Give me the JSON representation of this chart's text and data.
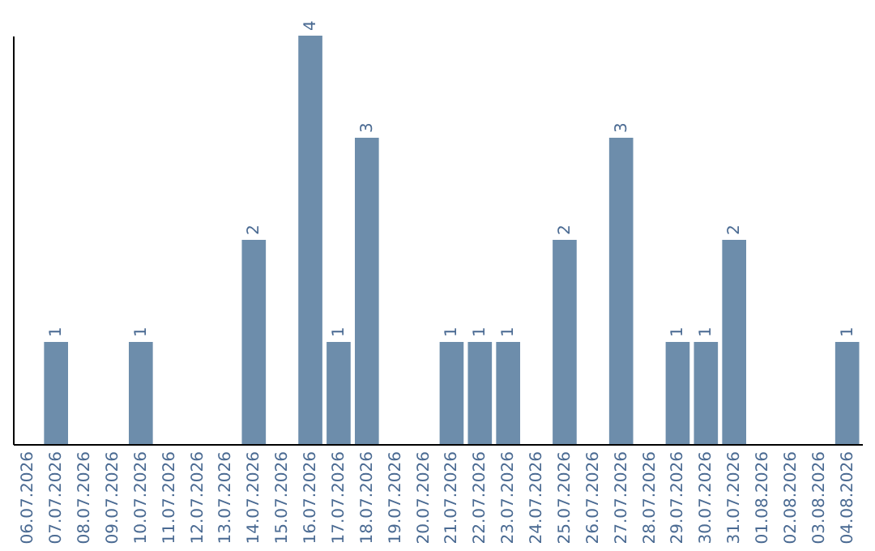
{
  "chart_data": {
    "type": "bar",
    "color": "#6d8dab",
    "categories": [
      "06.07.2026",
      "07.07.2026",
      "08.07.2026",
      "09.07.2026",
      "10.07.2026",
      "11.07.2026",
      "12.07.2026",
      "13.07.2026",
      "14.07.2026",
      "15.07.2026",
      "16.07.2026",
      "17.07.2026",
      "18.07.2026",
      "19.07.2026",
      "20.07.2026",
      "21.07.2026",
      "22.07.2026",
      "23.07.2026",
      "24.07.2026",
      "25.07.2026",
      "26.07.2026",
      "27.07.2026",
      "28.07.2026",
      "29.07.2026",
      "30.07.2026",
      "31.07.2026",
      "01.08.2026",
      "02.08.2026",
      "03.08.2026",
      "04.08.2026"
    ],
    "values": [
      0,
      1,
      0,
      0,
      1,
      0,
      0,
      0,
      2,
      0,
      4,
      1,
      3,
      0,
      0,
      1,
      1,
      1,
      0,
      2,
      0,
      3,
      0,
      1,
      1,
      2,
      0,
      0,
      0,
      1
    ],
    "value_labels": [
      null,
      "1",
      null,
      null,
      "1",
      null,
      null,
      null,
      "2",
      null,
      "4",
      "1",
      "3",
      null,
      null,
      "1",
      "1",
      "1",
      null,
      "2",
      null,
      "3",
      null,
      "1",
      "1",
      "2",
      null,
      null,
      null,
      "1"
    ]
  }
}
